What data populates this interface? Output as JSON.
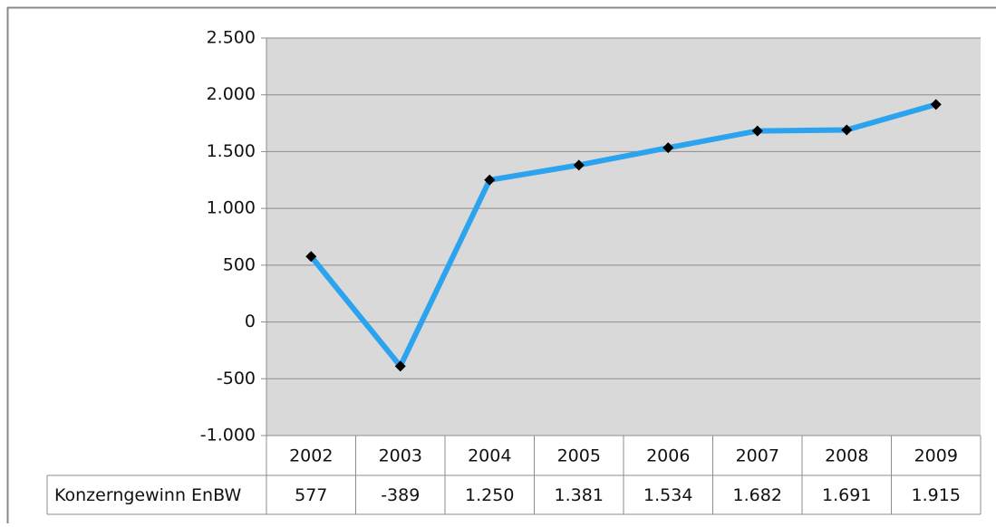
{
  "chart_data": {
    "type": "line",
    "categories": [
      "2002",
      "2003",
      "2004",
      "2005",
      "2006",
      "2007",
      "2008",
      "2009"
    ],
    "series": [
      {
        "name": "Konzerngewinn EnBW",
        "color": "#2ba3ee",
        "values": [
          577,
          -389,
          1250,
          1381,
          1534,
          1682,
          1691,
          1915
        ],
        "value_labels": [
          "577",
          "-389",
          "1.250",
          "1.381",
          "1.534",
          "1.682",
          "1.691",
          "1.915"
        ]
      }
    ],
    "ylim": [
      -1000,
      2500
    ],
    "yticks": [
      {
        "value": -1000,
        "label": "-1.000"
      },
      -500,
      0,
      500,
      {
        "value": 1000,
        "label": "1.000"
      },
      {
        "value": 1500,
        "label": "1.500"
      },
      {
        "value": 2000,
        "label": "2.000"
      },
      {
        "value": 2500,
        "label": "2.500"
      }
    ],
    "grid": true,
    "marker_color": "#000000",
    "plot_background": "#d9d9d9"
  }
}
